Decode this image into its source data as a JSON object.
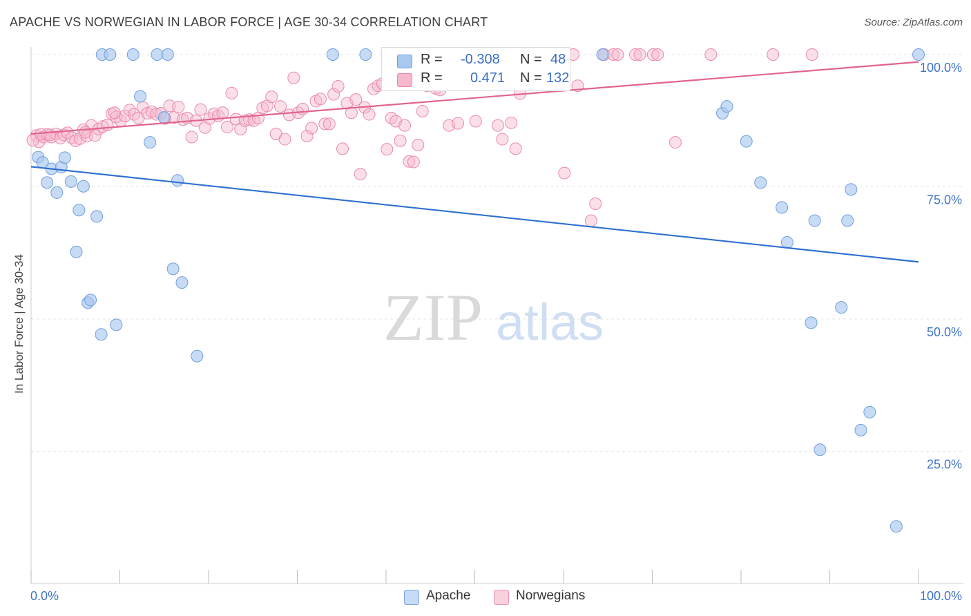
{
  "title": "APACHE VS NORWEGIAN IN LABOR FORCE | AGE 30-34 CORRELATION CHART",
  "source": "Source: ZipAtlas.com",
  "watermark": {
    "zip": "ZIP",
    "atlas": "atlas"
  },
  "legend_top": {
    "rows": [
      {
        "r_label": "R =",
        "r_value": "-0.308",
        "n_label": "N =",
        "n_value": "48",
        "color": "#a9c8f0",
        "stroke": "#6f9fdc"
      },
      {
        "r_label": "R =",
        "r_value": "0.471",
        "n_label": "N =",
        "n_value": "132",
        "color": "#f7b8cc",
        "stroke": "#e889aa"
      }
    ]
  },
  "legend_bottom": {
    "items": [
      {
        "label": "Apache",
        "color": "#a9c8f0",
        "stroke": "#6f9fdc"
      },
      {
        "label": "Norwegians",
        "color": "#f7b8cc",
        "stroke": "#e889aa"
      }
    ]
  },
  "chart_data": {
    "type": "scatter",
    "title": "APACHE VS NORWEGIAN IN LABOR FORCE | AGE 30-34 CORRELATION CHART",
    "xlabel": "",
    "ylabel": "In Labor Force | Age 30-34",
    "xlim": [
      0,
      100
    ],
    "ylim": [
      0,
      100
    ],
    "x_tick_labels": [
      "0.0%",
      "100.0%"
    ],
    "y_ticks": [
      25,
      50,
      75,
      100
    ],
    "y_tick_labels": [
      "25.0%",
      "50.0%",
      "75.0%",
      "100.0%"
    ],
    "grid": true,
    "legend_position": "top-center",
    "series": [
      {
        "name": "Apache",
        "color": "#a9c8f0",
        "stroke": "#6f9fdc",
        "line_color": "#2f6fd1",
        "trend": {
          "x": [
            0,
            100
          ],
          "y": [
            78.8,
            60.8
          ]
        },
        "points": [
          [
            0.8,
            80.6
          ],
          [
            1.3,
            79.6
          ],
          [
            1.8,
            75.8
          ],
          [
            2.3,
            78.4
          ],
          [
            2.9,
            73.9
          ],
          [
            3.4,
            78.7
          ],
          [
            3.8,
            80.5
          ],
          [
            4.5,
            76.0
          ],
          [
            5.1,
            62.7
          ],
          [
            5.4,
            70.6
          ],
          [
            5.9,
            75.1
          ],
          [
            6.4,
            53.1
          ],
          [
            6.7,
            53.6
          ],
          [
            7.4,
            69.4
          ],
          [
            7.9,
            47.1
          ],
          [
            9.6,
            48.9
          ],
          [
            8.0,
            100
          ],
          [
            8.9,
            100
          ],
          [
            11.5,
            100
          ],
          [
            12.3,
            92.1
          ],
          [
            13.4,
            83.4
          ],
          [
            14.2,
            100
          ],
          [
            15.0,
            88.1
          ],
          [
            15.4,
            100
          ],
          [
            16.0,
            59.5
          ],
          [
            16.5,
            76.2
          ],
          [
            17.0,
            56.9
          ],
          [
            18.7,
            43.0
          ],
          [
            34.0,
            100
          ],
          [
            37.7,
            100
          ],
          [
            42.5,
            100
          ],
          [
            64.4,
            100
          ],
          [
            77.9,
            88.9
          ],
          [
            78.4,
            90.2
          ],
          [
            80.6,
            83.6
          ],
          [
            82.2,
            75.8
          ],
          [
            84.6,
            71.1
          ],
          [
            85.2,
            64.5
          ],
          [
            87.9,
            49.3
          ],
          [
            88.3,
            68.6
          ],
          [
            88.9,
            25.3
          ],
          [
            91.3,
            52.2
          ],
          [
            92.4,
            74.5
          ],
          [
            92.0,
            68.6
          ],
          [
            93.5,
            29.0
          ],
          [
            94.5,
            32.4
          ],
          [
            97.5,
            10.8
          ],
          [
            100,
            100
          ]
        ]
      },
      {
        "name": "Norwegians",
        "color": "#f7b8cc",
        "stroke": "#e889aa",
        "line_color": "#e0648e",
        "trend": {
          "x": [
            0,
            100
          ],
          "y": [
            85.0,
            98.6
          ]
        },
        "points": [
          [
            0.6,
            84.7
          ],
          [
            0.9,
            83.5
          ],
          [
            1.4,
            84.4
          ],
          [
            1.8,
            84.9
          ],
          [
            2.3,
            84.4
          ],
          [
            2.8,
            85.0
          ],
          [
            3.3,
            84.2
          ],
          [
            3.7,
            84.8
          ],
          [
            4.1,
            85.2
          ],
          [
            4.6,
            84.3
          ],
          [
            5.0,
            83.7
          ],
          [
            5.5,
            84.1
          ],
          [
            5.9,
            85.8
          ],
          [
            6.3,
            84.6
          ],
          [
            6.8,
            86.6
          ],
          [
            7.2,
            84.7
          ],
          [
            7.6,
            85.9
          ],
          [
            8.1,
            86.4
          ],
          [
            8.6,
            86.7
          ],
          [
            9.1,
            88.8
          ],
          [
            9.6,
            88.2
          ],
          [
            10.1,
            87.5
          ],
          [
            10.6,
            88.4
          ],
          [
            11.1,
            89.5
          ],
          [
            11.6,
            88.7
          ],
          [
            12.1,
            88.0
          ],
          [
            12.6,
            90.0
          ],
          [
            13.1,
            88.9
          ],
          [
            13.6,
            89.2
          ],
          [
            14.1,
            88.7
          ],
          [
            14.6,
            88.9
          ],
          [
            15.1,
            87.9
          ],
          [
            15.6,
            90.3
          ],
          [
            16.1,
            88.1
          ],
          [
            16.6,
            90.1
          ],
          [
            17.1,
            87.7
          ],
          [
            17.6,
            88.0
          ],
          [
            18.1,
            84.4
          ],
          [
            18.6,
            87.5
          ],
          [
            19.1,
            89.6
          ],
          [
            19.6,
            86.2
          ],
          [
            20.1,
            87.9
          ],
          [
            20.6,
            88.8
          ],
          [
            21.1,
            88.4
          ],
          [
            21.6,
            89.0
          ],
          [
            22.1,
            86.3
          ],
          [
            22.6,
            92.7
          ],
          [
            23.1,
            87.8
          ],
          [
            23.6,
            85.9
          ],
          [
            24.1,
            87.5
          ],
          [
            24.6,
            87.7
          ],
          [
            25.1,
            87.5
          ],
          [
            25.6,
            88.0
          ],
          [
            26.1,
            89.9
          ],
          [
            26.6,
            90.3
          ],
          [
            27.1,
            92.0
          ],
          [
            27.6,
            85.0
          ],
          [
            28.1,
            90.2
          ],
          [
            28.6,
            84.0
          ],
          [
            29.1,
            88.6
          ],
          [
            29.6,
            95.6
          ],
          [
            30.1,
            89.0
          ],
          [
            30.6,
            89.7
          ],
          [
            31.1,
            84.6
          ],
          [
            31.6,
            86.1
          ],
          [
            32.1,
            91.2
          ],
          [
            32.6,
            91.6
          ],
          [
            33.1,
            86.9
          ],
          [
            33.6,
            86.9
          ],
          [
            34.1,
            92.5
          ],
          [
            34.6,
            94.0
          ],
          [
            35.1,
            82.2
          ],
          [
            35.6,
            90.8
          ],
          [
            36.1,
            89.0
          ],
          [
            36.6,
            91.5
          ],
          [
            37.1,
            77.4
          ],
          [
            37.6,
            90.0
          ],
          [
            38.1,
            88.7
          ],
          [
            38.6,
            93.5
          ],
          [
            39.1,
            94.1
          ],
          [
            39.6,
            94.5
          ],
          [
            40.1,
            82.1
          ],
          [
            40.6,
            88.0
          ],
          [
            41.1,
            87.4
          ],
          [
            41.6,
            83.7
          ],
          [
            42.1,
            86.6
          ],
          [
            42.6,
            79.8
          ],
          [
            43.1,
            79.7
          ],
          [
            43.6,
            82.9
          ],
          [
            44.1,
            89.3
          ],
          [
            44.6,
            94.1
          ],
          [
            45.1,
            96.3
          ],
          [
            45.6,
            93.6
          ],
          [
            46.1,
            93.3
          ],
          [
            46.6,
            97.0
          ],
          [
            47.1,
            86.6
          ],
          [
            47.6,
            97.3
          ],
          [
            48.1,
            87.0
          ],
          [
            48.6,
            94.7
          ],
          [
            49.1,
            100
          ],
          [
            50.1,
            87.4
          ],
          [
            50.6,
            97.6
          ],
          [
            51.1,
            96.8
          ],
          [
            52.6,
            86.6
          ],
          [
            53.1,
            84.0
          ],
          [
            53.6,
            100
          ],
          [
            54.1,
            87.1
          ],
          [
            54.6,
            82.2
          ],
          [
            55.1,
            92.6
          ],
          [
            55.6,
            95.7
          ],
          [
            58.6,
            100
          ],
          [
            60.1,
            77.6
          ],
          [
            61.1,
            100
          ],
          [
            61.6,
            94.1
          ],
          [
            63.6,
            71.8
          ],
          [
            63.1,
            68.6
          ],
          [
            64.6,
            100
          ],
          [
            65.6,
            100
          ],
          [
            66.1,
            100
          ],
          [
            68.1,
            100
          ],
          [
            68.6,
            100
          ],
          [
            70.1,
            100
          ],
          [
            70.6,
            100
          ],
          [
            72.6,
            83.4
          ],
          [
            76.6,
            100
          ],
          [
            83.6,
            100
          ],
          [
            88.0,
            100
          ],
          [
            0.2,
            83.8
          ],
          [
            1.1,
            84.9
          ],
          [
            2.1,
            84.8
          ],
          [
            6.1,
            85.3
          ],
          [
            9.4,
            89.0
          ]
        ]
      }
    ]
  }
}
